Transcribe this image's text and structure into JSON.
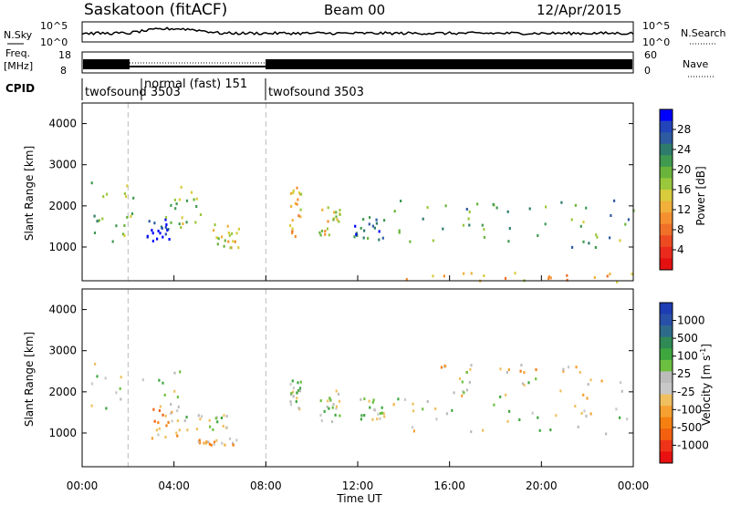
{
  "header": {
    "title": "Saskatoon (fitACF)",
    "beam": "Beam 00",
    "date": "12/Apr/2015"
  },
  "status": {
    "nsky_label": "N.Sky",
    "nsky_ticks": [
      "10^5",
      "10^0"
    ],
    "nsearch_label": "N.Search",
    "nsearch_ticks": [
      "10^5",
      "10^0"
    ],
    "freq_label": "Freq.",
    "freq_unit": "[MHz]",
    "freq_ticks": [
      "18",
      "8"
    ],
    "nave_label": "Nave",
    "nave_ticks": [
      "60",
      "0"
    ],
    "cpid_label": "CPID",
    "cpid_segments": [
      {
        "label": "twofsound 3503",
        "start_h": 0,
        "end_h": 2
      },
      {
        "label": "normal (fast) 151",
        "start_h": 2,
        "end_h": 8
      },
      {
        "label": "twofsound 3503",
        "start_h": 8,
        "end_h": 24
      }
    ]
  },
  "colorbars": {
    "power": {
      "label": "Power [dB]",
      "ticks": [
        "28",
        "24",
        "20",
        "16",
        "12",
        "8",
        "4"
      ],
      "colors": [
        "#0000ff",
        "#2244bb",
        "#2d5aa0",
        "#2e7b6c",
        "#3f9a50",
        "#6ab43c",
        "#9ac83c",
        "#d8cc3c",
        "#f0b03a",
        "#f59030",
        "#f07028",
        "#ee4a22",
        "#ea2a1c",
        "#e41010"
      ]
    },
    "velocity": {
      "label": "Velocity",
      "unit": "[m s",
      "unit_exp": "-1",
      "unit_close": "]",
      "ticks": [
        "1000",
        "500",
        "100",
        "25",
        "-25",
        "-100",
        "-500",
        "-1000"
      ],
      "colors": [
        "#1e3cb4",
        "#2850a8",
        "#2e6a8a",
        "#2f8a55",
        "#3ea63e",
        "#6cc040",
        "#bbbbbb",
        "#c8c8c8",
        "#f0c060",
        "#f5a030",
        "#f57f10",
        "#f26010",
        "#ee3418",
        "#e81010"
      ]
    }
  },
  "axes": {
    "ylabel": "Slant Range [km]",
    "xlabel": "Time UT",
    "xticks": [
      "00:00",
      "04:00",
      "08:00",
      "12:00",
      "16:00",
      "20:00",
      "00:00"
    ],
    "yticks": [
      "1000",
      "2000",
      "3000",
      "4000"
    ]
  },
  "chart_data": [
    {
      "type": "heatmap",
      "title": "",
      "xlabel": "Time UT",
      "ylabel": "Slant Range [km]",
      "xlim_hours": [
        0,
        24
      ],
      "ylim_km": [
        180,
        4500
      ],
      "colorbar": "Power [dB]",
      "color_range": [
        0,
        30
      ],
      "features": [
        {
          "t0": 0.0,
          "t1": 2.2,
          "r0": 1000,
          "r1": 2800,
          "value": 18
        },
        {
          "t0": 2.8,
          "t1": 3.8,
          "r0": 1100,
          "r1": 1700,
          "value": 28
        },
        {
          "t0": 3.6,
          "t1": 5.5,
          "r0": 1500,
          "r1": 2500,
          "value": 16
        },
        {
          "t0": 5.3,
          "t1": 6.8,
          "r0": 1000,
          "r1": 1600,
          "value": 14
        },
        {
          "t0": 9.0,
          "t1": 9.5,
          "r0": 1200,
          "r1": 2600,
          "value": 12
        },
        {
          "t0": 10.3,
          "t1": 11.2,
          "r0": 1300,
          "r1": 2100,
          "value": 14
        },
        {
          "t0": 11.8,
          "t1": 13.2,
          "r0": 1200,
          "r1": 1800,
          "value": 24
        },
        {
          "t0": 13.5,
          "t1": 24.0,
          "r0": 1000,
          "r1": 2200,
          "value": 20
        },
        {
          "t0": 14.0,
          "t1": 24.0,
          "r0": 180,
          "r1": 400,
          "value": 10
        }
      ]
    },
    {
      "type": "heatmap",
      "title": "",
      "xlabel": "Time UT",
      "ylabel": "Slant Range [km]",
      "xlim_hours": [
        0,
        24
      ],
      "ylim_km": [
        180,
        4500
      ],
      "colorbar": "Velocity [m s-1]",
      "color_range": [
        -1000,
        1000
      ],
      "features": [
        {
          "t0": 0.0,
          "t1": 4.5,
          "r0": 1600,
          "r1": 2800,
          "value": 0
        },
        {
          "t0": 3.0,
          "t1": 4.2,
          "r0": 900,
          "r1": 1700,
          "value": -300
        },
        {
          "t0": 4.2,
          "t1": 7.0,
          "r0": 1100,
          "r1": 1500,
          "value": 120
        },
        {
          "t0": 5.0,
          "t1": 6.8,
          "r0": 700,
          "r1": 900,
          "value": -300
        },
        {
          "t0": 9.0,
          "t1": 9.5,
          "r0": 1600,
          "r1": 2300,
          "value": 100
        },
        {
          "t0": 10.3,
          "t1": 11.2,
          "r0": 1300,
          "r1": 2100,
          "value": 80
        },
        {
          "t0": 12.0,
          "t1": 13.2,
          "r0": 1200,
          "r1": 1900,
          "value": 120
        },
        {
          "t0": 13.5,
          "t1": 24.0,
          "r0": 1000,
          "r1": 2400,
          "value": 0
        },
        {
          "t0": 15.5,
          "t1": 22.0,
          "r0": 2500,
          "r1": 2700,
          "value": -150
        }
      ]
    }
  ]
}
